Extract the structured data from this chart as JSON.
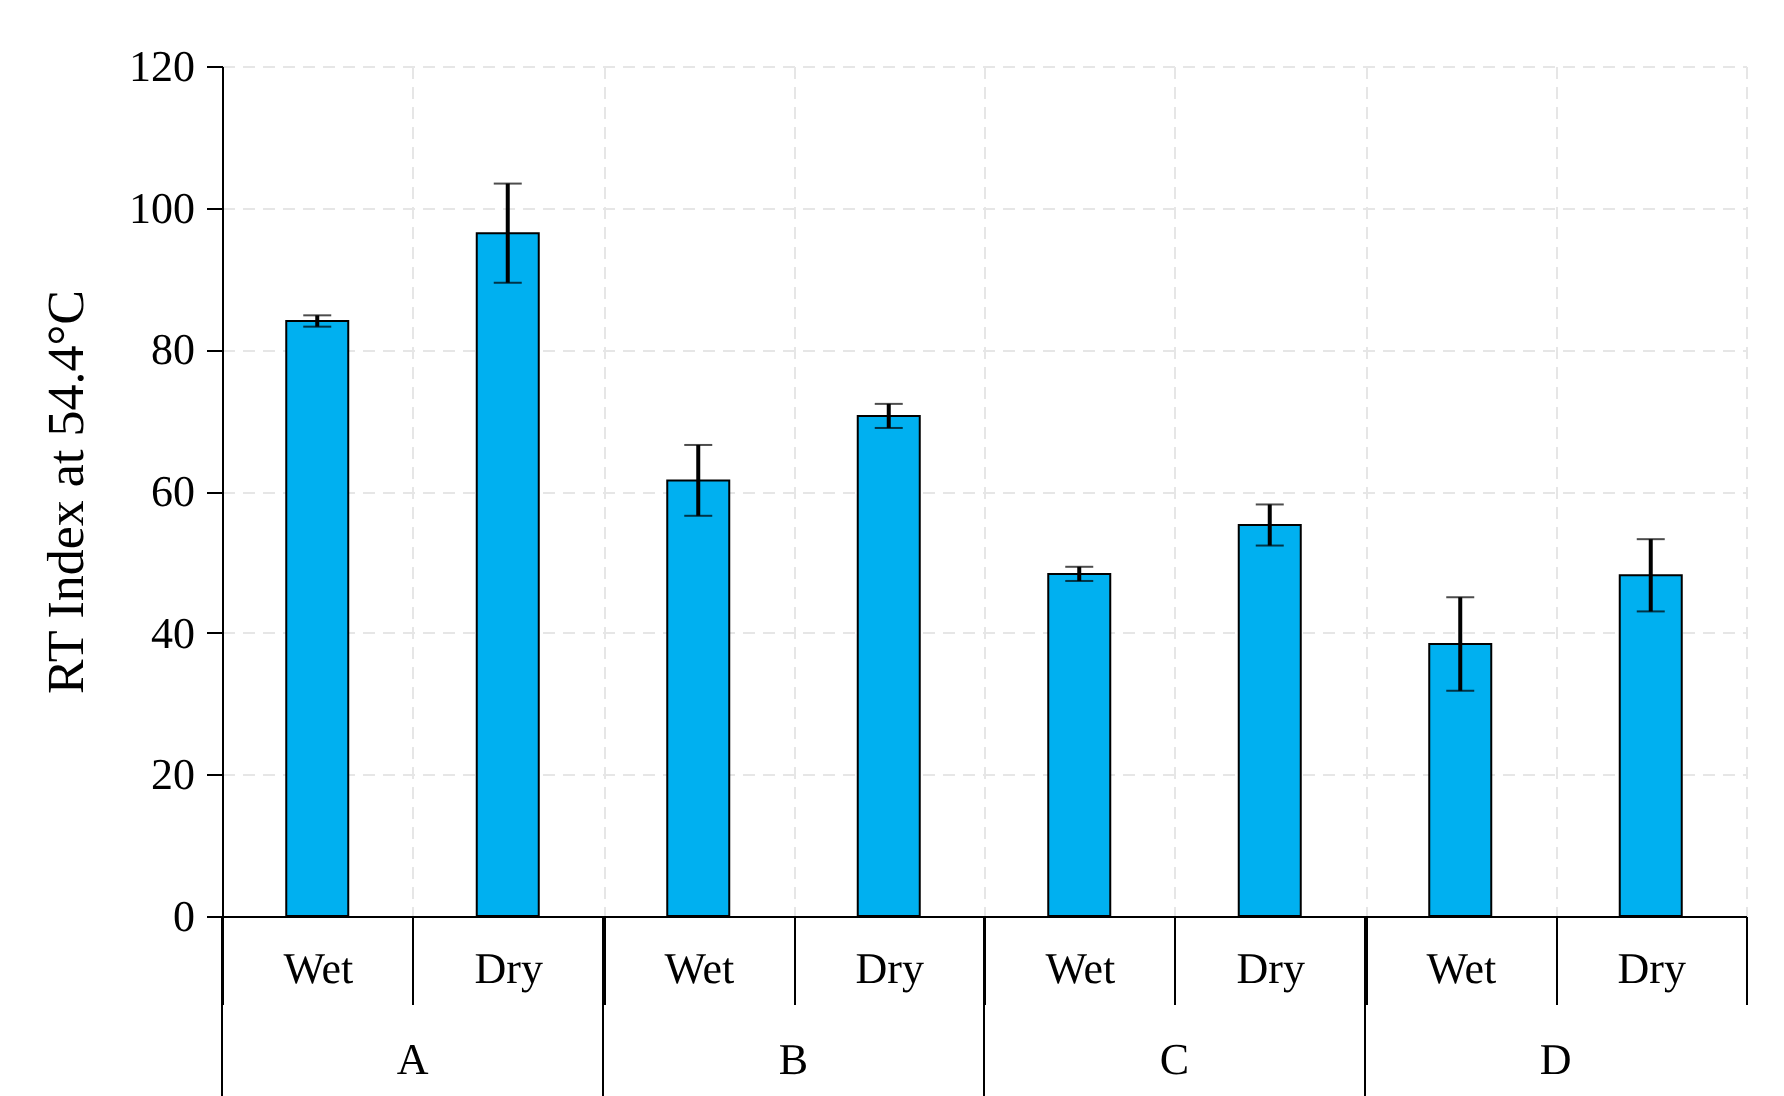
{
  "chart_data": {
    "type": "bar",
    "ylabel": "RT Index at 54.4°C",
    "categories": [
      "Wet",
      "Dry",
      "Wet",
      "Dry",
      "Wet",
      "Dry",
      "Wet",
      "Dry"
    ],
    "annotations": [
      "A",
      "B",
      "C",
      "D"
    ],
    "series": [
      {
        "color": "#00b0f0",
        "values": [
          84.0,
          96.4,
          61.5,
          70.6,
          48.3,
          55.2,
          38.4,
          48.1
        ],
        "errors": [
          0.8,
          7.0,
          5.0,
          1.7,
          1.0,
          2.9,
          6.6,
          5.1
        ]
      }
    ],
    "ylim": [
      0,
      120
    ],
    "yticks": [
      0,
      20,
      40,
      60,
      80,
      100,
      120
    ],
    "grid": true
  }
}
